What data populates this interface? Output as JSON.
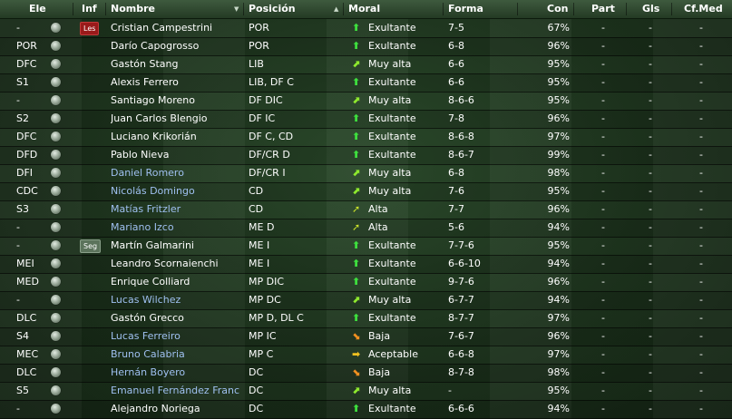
{
  "header": {
    "ele": "Ele",
    "inf": "Inf",
    "nombre": "Nombre",
    "posicion": "Posición",
    "moral": "Moral",
    "forma": "Forma",
    "con": "Con",
    "part": "Part",
    "gls": "Gls",
    "cfmed": "Cf.Med"
  },
  "sort_arrows": {
    "nombre": "▼",
    "posicion": "▲"
  },
  "morale_icons": {
    "Exultante": {
      "glyph": "⬆",
      "color": "#3ee03e"
    },
    "Muy alta": {
      "glyph": "⬈",
      "color": "#8ee82e"
    },
    "Alta": {
      "glyph": "➚",
      "color": "#c8e02a"
    },
    "Aceptable": {
      "glyph": "➡",
      "color": "#f0c020"
    },
    "Baja": {
      "glyph": "⬊",
      "color": "#f09020"
    }
  },
  "rows": [
    {
      "ele": "-",
      "inf": "Les",
      "nombre": "Cristian Campestrini",
      "link": false,
      "posicion": "POR",
      "moral": "Exultante",
      "forma": "7-5",
      "con": "67%",
      "part": "-",
      "gls": "-",
      "cfmed": "-"
    },
    {
      "ele": "POR",
      "inf": "",
      "nombre": "Darío Capogrosso",
      "link": false,
      "posicion": "POR",
      "moral": "Exultante",
      "forma": "6-8",
      "con": "96%",
      "part": "-",
      "gls": "-",
      "cfmed": "-"
    },
    {
      "ele": "DFC",
      "inf": "",
      "nombre": "Gastón Stang",
      "link": false,
      "posicion": "LIB",
      "moral": "Muy alta",
      "forma": "6-6",
      "con": "95%",
      "part": "-",
      "gls": "-",
      "cfmed": "-"
    },
    {
      "ele": "S1",
      "inf": "",
      "nombre": "Alexis Ferrero",
      "link": false,
      "posicion": "LIB, DF C",
      "moral": "Exultante",
      "forma": "6-6",
      "con": "95%",
      "part": "-",
      "gls": "-",
      "cfmed": "-"
    },
    {
      "ele": "-",
      "inf": "",
      "nombre": "Santiago Moreno",
      "link": false,
      "posicion": "DF DIC",
      "moral": "Muy alta",
      "forma": "8-6-6",
      "con": "95%",
      "part": "-",
      "gls": "-",
      "cfmed": "-"
    },
    {
      "ele": "S2",
      "inf": "",
      "nombre": "Juan Carlos Blengio",
      "link": false,
      "posicion": "DF IC",
      "moral": "Exultante",
      "forma": "7-8",
      "con": "96%",
      "part": "-",
      "gls": "-",
      "cfmed": "-"
    },
    {
      "ele": "DFC",
      "inf": "",
      "nombre": "Luciano Krikorián",
      "link": false,
      "posicion": "DF C, CD",
      "moral": "Exultante",
      "forma": "8-6-8",
      "con": "97%",
      "part": "-",
      "gls": "-",
      "cfmed": "-"
    },
    {
      "ele": "DFD",
      "inf": "",
      "nombre": "Pablo Nieva",
      "link": false,
      "posicion": "DF/CR D",
      "moral": "Exultante",
      "forma": "8-6-7",
      "con": "99%",
      "part": "-",
      "gls": "-",
      "cfmed": "-"
    },
    {
      "ele": "DFI",
      "inf": "",
      "nombre": "Daniel Romero",
      "link": true,
      "posicion": "DF/CR I",
      "moral": "Muy alta",
      "forma": "6-8",
      "con": "98%",
      "part": "-",
      "gls": "-",
      "cfmed": "-"
    },
    {
      "ele": "CDC",
      "inf": "",
      "nombre": "Nicolás Domingo",
      "link": true,
      "posicion": "CD",
      "moral": "Muy alta",
      "forma": "7-6",
      "con": "95%",
      "part": "-",
      "gls": "-",
      "cfmed": "-"
    },
    {
      "ele": "S3",
      "inf": "",
      "nombre": "Matías Fritzler",
      "link": true,
      "posicion": "CD",
      "moral": "Alta",
      "forma": "7-7",
      "con": "96%",
      "part": "-",
      "gls": "-",
      "cfmed": "-"
    },
    {
      "ele": "-",
      "inf": "",
      "nombre": "Mariano Izco",
      "link": true,
      "posicion": "ME D",
      "moral": "Alta",
      "forma": "5-6",
      "con": "94%",
      "part": "-",
      "gls": "-",
      "cfmed": "-"
    },
    {
      "ele": "-",
      "inf": "Seg",
      "nombre": "Martín Galmarini",
      "link": false,
      "posicion": "ME I",
      "moral": "Exultante",
      "forma": "7-7-6",
      "con": "95%",
      "part": "-",
      "gls": "-",
      "cfmed": "-"
    },
    {
      "ele": "MEI",
      "inf": "",
      "nombre": "Leandro Scornaienchi",
      "link": false,
      "posicion": "ME I",
      "moral": "Exultante",
      "forma": "6-6-10",
      "con": "94%",
      "part": "-",
      "gls": "-",
      "cfmed": "-"
    },
    {
      "ele": "MED",
      "inf": "",
      "nombre": "Enrique Colliard",
      "link": false,
      "posicion": "MP DIC",
      "moral": "Exultante",
      "forma": "9-7-6",
      "con": "96%",
      "part": "-",
      "gls": "-",
      "cfmed": "-"
    },
    {
      "ele": "-",
      "inf": "",
      "nombre": "Lucas Wilchez",
      "link": true,
      "posicion": "MP DC",
      "moral": "Muy alta",
      "forma": "6-7-7",
      "con": "94%",
      "part": "-",
      "gls": "-",
      "cfmed": "-"
    },
    {
      "ele": "DLC",
      "inf": "",
      "nombre": "Gastón Grecco",
      "link": false,
      "posicion": "MP D, DL C",
      "moral": "Exultante",
      "forma": "8-7-7",
      "con": "97%",
      "part": "-",
      "gls": "-",
      "cfmed": "-"
    },
    {
      "ele": "S4",
      "inf": "",
      "nombre": "Lucas Ferreiro",
      "link": true,
      "posicion": "MP IC",
      "moral": "Baja",
      "forma": "7-6-7",
      "con": "96%",
      "part": "-",
      "gls": "-",
      "cfmed": "-"
    },
    {
      "ele": "MEC",
      "inf": "",
      "nombre": "Bruno Calabria",
      "link": true,
      "posicion": "MP C",
      "moral": "Aceptable",
      "forma": "6-6-8",
      "con": "97%",
      "part": "-",
      "gls": "-",
      "cfmed": "-"
    },
    {
      "ele": "DLC",
      "inf": "",
      "nombre": "Hernán Boyero",
      "link": true,
      "posicion": "DC",
      "moral": "Baja",
      "forma": "8-7-8",
      "con": "98%",
      "part": "-",
      "gls": "-",
      "cfmed": "-"
    },
    {
      "ele": "S5",
      "inf": "",
      "nombre": "Emanuel Fernández Franco",
      "link": true,
      "posicion": "DC",
      "moral": "Muy alta",
      "forma": "-",
      "con": "95%",
      "part": "-",
      "gls": "-",
      "cfmed": "-"
    },
    {
      "ele": "-",
      "inf": "",
      "nombre": "Alejandro Noriega",
      "link": false,
      "posicion": "DC",
      "moral": "Exultante",
      "forma": "6-6-6",
      "con": "94%",
      "part": "-",
      "gls": "-",
      "cfmed": "-"
    }
  ]
}
